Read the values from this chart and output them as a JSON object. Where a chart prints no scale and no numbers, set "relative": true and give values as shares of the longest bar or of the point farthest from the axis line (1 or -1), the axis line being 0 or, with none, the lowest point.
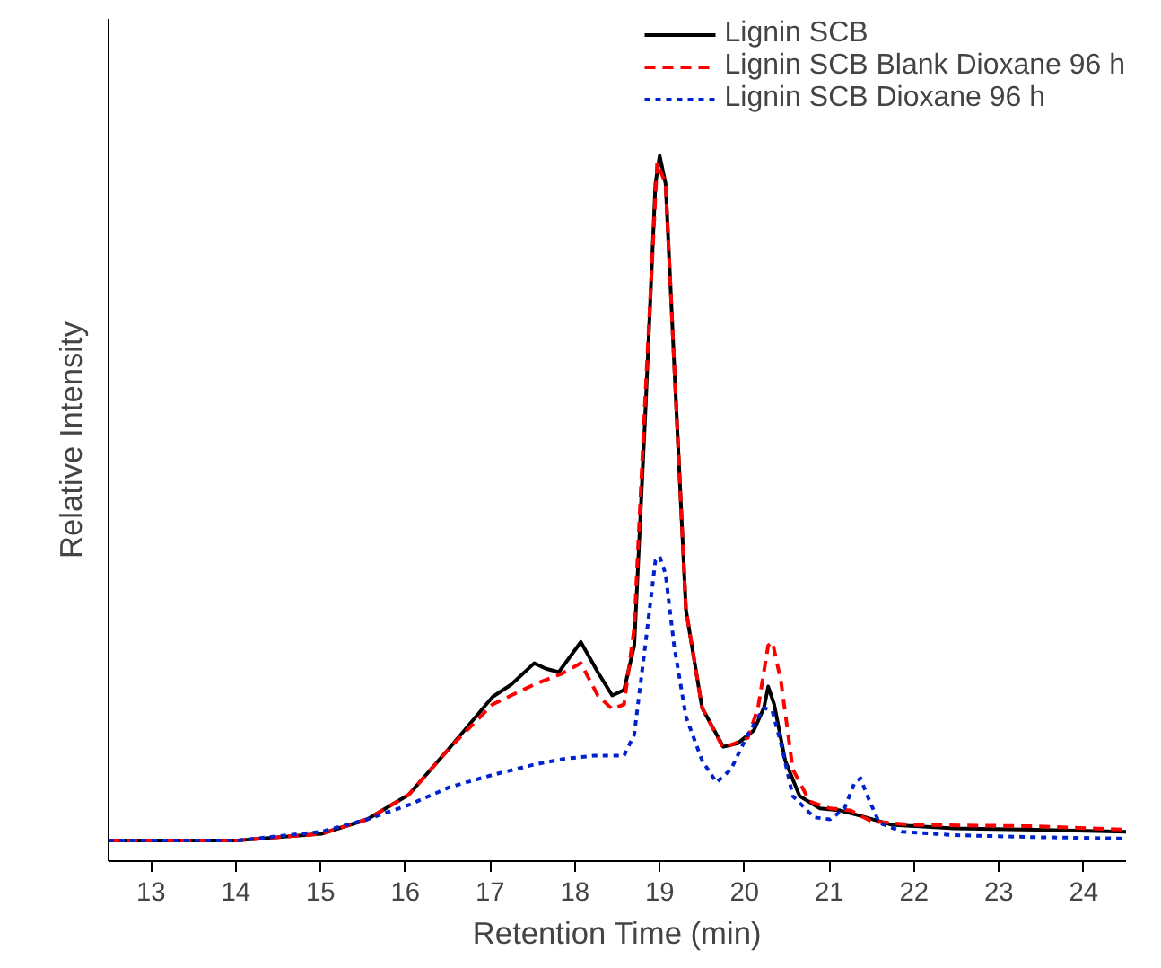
{
  "chart_data": {
    "type": "line",
    "relative": true,
    "xlabel": "Retention Time (min)",
    "ylabel": "Relative Intensity",
    "xlim": [
      12.5,
      24.5
    ],
    "xticks": [
      13,
      14,
      15,
      16,
      17,
      18,
      19,
      20,
      21,
      22,
      23,
      24
    ],
    "grid": false,
    "legend": "top right",
    "marker": "none",
    "series": [
      {
        "name": "Lignin SCB",
        "color": "#000000",
        "line_style": "solid",
        "x": [
          12.5,
          14.0,
          15.01,
          15.55,
          16.04,
          16.52,
          17.03,
          17.25,
          17.52,
          17.66,
          17.81,
          18.07,
          18.27,
          18.44,
          18.58,
          18.7,
          18.83,
          18.95,
          19.0,
          19.07,
          19.17,
          19.31,
          19.5,
          19.75,
          19.92,
          20.11,
          20.23,
          20.28,
          20.35,
          20.48,
          20.65,
          20.89,
          21.13,
          21.37,
          21.74,
          22.47,
          23.44,
          24.5
        ],
        "values": [
          0,
          0,
          0.01,
          0.031,
          0.067,
          0.135,
          0.21,
          0.228,
          0.259,
          0.251,
          0.246,
          0.29,
          0.246,
          0.212,
          0.22,
          0.285,
          0.622,
          0.959,
          1,
          0.959,
          0.699,
          0.337,
          0.194,
          0.137,
          0.142,
          0.161,
          0.194,
          0.225,
          0.199,
          0.117,
          0.065,
          0.047,
          0.044,
          0.036,
          0.023,
          0.018,
          0.016,
          0.013
        ]
      },
      {
        "name": "Lignin SCB Blank Dioxane 96 h",
        "color": "#ff0000",
        "line_style": "dashed",
        "x": [
          12.5,
          14.0,
          15.01,
          15.55,
          16.04,
          16.52,
          17.03,
          17.52,
          17.85,
          18.07,
          18.27,
          18.44,
          18.58,
          18.7,
          18.83,
          18.97,
          19.07,
          19.17,
          19.31,
          19.5,
          19.75,
          20.04,
          20.16,
          20.28,
          20.33,
          20.43,
          20.57,
          20.77,
          21.01,
          21.25,
          21.5,
          21.98,
          23.44,
          24.5
        ],
        "values": [
          0,
          0,
          0.01,
          0.031,
          0.067,
          0.135,
          0.199,
          0.228,
          0.244,
          0.259,
          0.212,
          0.192,
          0.199,
          0.311,
          0.648,
          0.99,
          0.959,
          0.699,
          0.337,
          0.194,
          0.135,
          0.15,
          0.194,
          0.285,
          0.29,
          0.233,
          0.104,
          0.057,
          0.047,
          0.044,
          0.028,
          0.023,
          0.021,
          0.016
        ]
      },
      {
        "name": "Lignin SCB Dioxane 96 h",
        "color": "#0022cc",
        "line_style": "dotted",
        "x": [
          12.5,
          14.0,
          15.01,
          15.55,
          16.04,
          16.52,
          17.03,
          17.52,
          17.85,
          18.22,
          18.58,
          18.7,
          18.83,
          18.95,
          19.0,
          19.07,
          19.17,
          19.31,
          19.5,
          19.67,
          19.84,
          20.04,
          20.23,
          20.33,
          20.43,
          20.57,
          20.82,
          21.01,
          21.18,
          21.3,
          21.37,
          21.45,
          21.59,
          21.86,
          22.47,
          23.44,
          24.5
        ],
        "values": [
          0,
          0,
          0.013,
          0.031,
          0.052,
          0.078,
          0.096,
          0.111,
          0.119,
          0.124,
          0.124,
          0.155,
          0.285,
          0.409,
          0.415,
          0.389,
          0.285,
          0.181,
          0.117,
          0.085,
          0.104,
          0.155,
          0.194,
          0.189,
          0.142,
          0.065,
          0.034,
          0.031,
          0.047,
          0.085,
          0.091,
          0.065,
          0.026,
          0.013,
          0.008,
          0.005,
          0.003
        ]
      }
    ]
  }
}
